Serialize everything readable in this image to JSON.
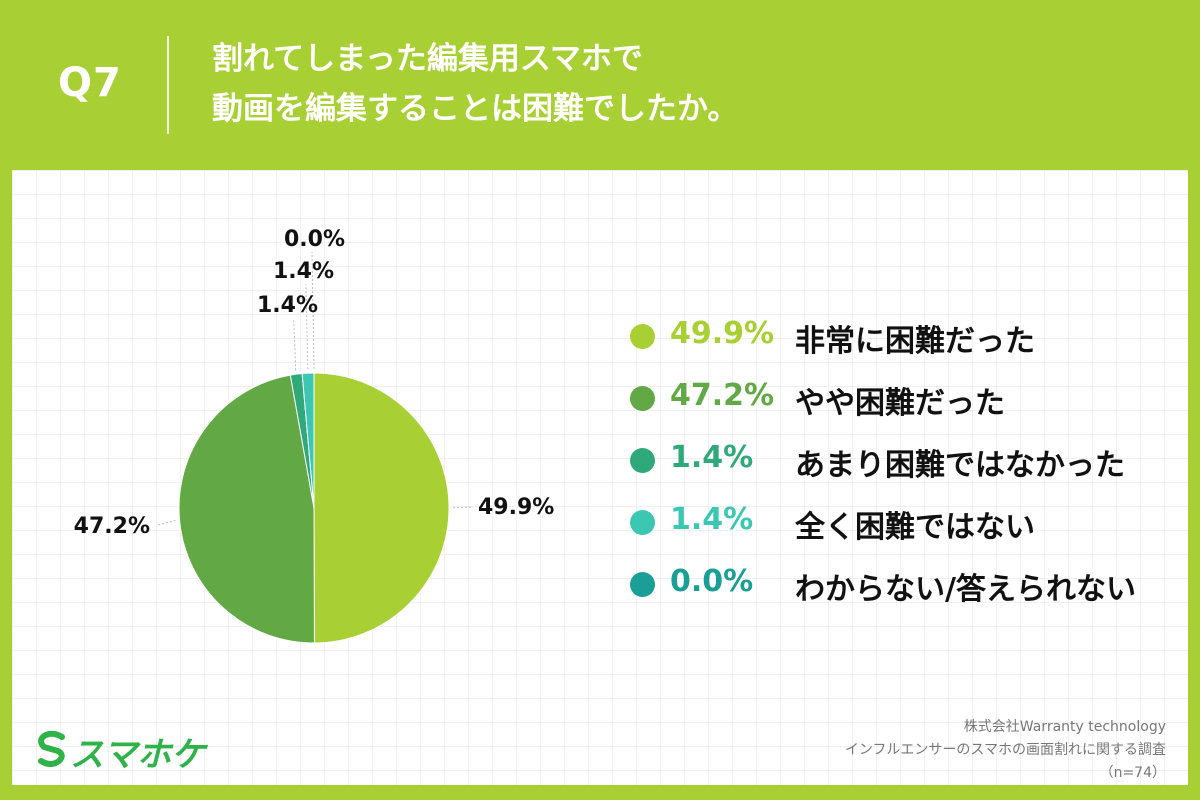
{
  "header": {
    "question_number": "Q7",
    "title_line1": "割れてしまった編集用スマホで",
    "title_line2": "動画を編集することは困難でしたか。"
  },
  "colors": {
    "background": "#a8cf34",
    "slice_1": "#a8cf34",
    "slice_2": "#62a844",
    "slice_3": "#2fa87a",
    "slice_4": "#3cc7b2",
    "slice_5": "#1a9e96",
    "logo": "#2fb24a"
  },
  "chart_data": {
    "type": "pie",
    "title": "",
    "slices": [
      {
        "label": "非常に困難だった",
        "value": 49.9,
        "value_label": "49.9%",
        "color": "#a8cf34"
      },
      {
        "label": "やや困難だった",
        "value": 47.2,
        "value_label": "47.2%",
        "color": "#62a844"
      },
      {
        "label": "あまり困難ではなかった",
        "value": 1.4,
        "value_label": "1.4%",
        "color": "#2fa87a"
      },
      {
        "label": "全く困難ではない",
        "value": 1.4,
        "value_label": "1.4%",
        "color": "#3cc7b2"
      },
      {
        "label": "わからない/答えられない",
        "value": 0.0,
        "value_label": "0.0%",
        "color": "#1a9e96"
      }
    ],
    "legend_position": "right",
    "grid": true
  },
  "footer": {
    "logo_text": "スマホケ",
    "source_line1": "株式会社Warranty technology",
    "source_line2": "インフルエンサーのスマホの画面割れに関する調査",
    "source_line3": "（n=74）"
  }
}
